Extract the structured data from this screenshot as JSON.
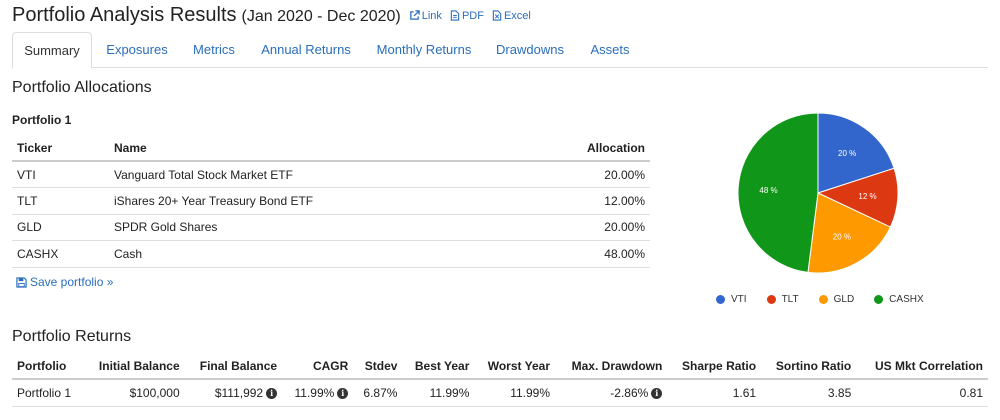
{
  "header": {
    "title": "Portfolio Analysis Results",
    "date_range": "(Jan 2020 - Dec 2020)",
    "links": [
      {
        "label": "Link",
        "icon": "external-link-icon"
      },
      {
        "label": "PDF",
        "icon": "pdf-file-icon"
      },
      {
        "label": "Excel",
        "icon": "excel-file-icon"
      }
    ]
  },
  "tabs": [
    {
      "label": "Summary",
      "active": true
    },
    {
      "label": "Exposures"
    },
    {
      "label": "Metrics"
    },
    {
      "label": "Annual Returns"
    },
    {
      "label": "Monthly Returns"
    },
    {
      "label": "Drawdowns"
    },
    {
      "label": "Assets"
    }
  ],
  "allocations": {
    "title": "Portfolio Allocations",
    "portfolio_name": "Portfolio 1",
    "headers": [
      "Ticker",
      "Name",
      "Allocation"
    ],
    "rows": [
      [
        "VTI",
        "Vanguard Total Stock Market ETF",
        "20.00%"
      ],
      [
        "TLT",
        "iShares 20+ Year Treasury Bond ETF",
        "12.00%"
      ],
      [
        "GLD",
        "SPDR Gold Shares",
        "20.00%"
      ],
      [
        "CASHX",
        "Cash",
        "48.00%"
      ]
    ],
    "save_label": "Save portfolio »"
  },
  "chart_data": {
    "type": "pie",
    "categories": [
      "VTI",
      "TLT",
      "GLD",
      "CASHX"
    ],
    "values": [
      20,
      12,
      20,
      48
    ],
    "labels": [
      "20 %",
      "12 %",
      "20 %",
      "48 %"
    ],
    "colors": [
      "#3366cc",
      "#dc3912",
      "#ff9900",
      "#109618"
    ],
    "legend_position": "bottom"
  },
  "returns": {
    "title": "Portfolio Returns",
    "headers": [
      "Portfolio",
      "Initial Balance",
      "Final Balance",
      "CAGR",
      "Stdev",
      "Best Year",
      "Worst Year",
      "Max. Drawdown",
      "Sharpe Ratio",
      "Sortino Ratio",
      "US Mkt Correlation"
    ],
    "rows": [
      {
        "portfolio": "Portfolio 1",
        "initial_balance": "$100,000",
        "final_balance": "$111,992",
        "cagr": "11.99%",
        "stdev": "6.87%",
        "best_year": "11.99%",
        "worst_year": "11.99%",
        "max_drawdown": "-2.86%",
        "sharpe_ratio": "1.61",
        "sortino_ratio": "3.85",
        "us_mkt_correlation": "0.81"
      }
    ],
    "info_icon": "i"
  }
}
